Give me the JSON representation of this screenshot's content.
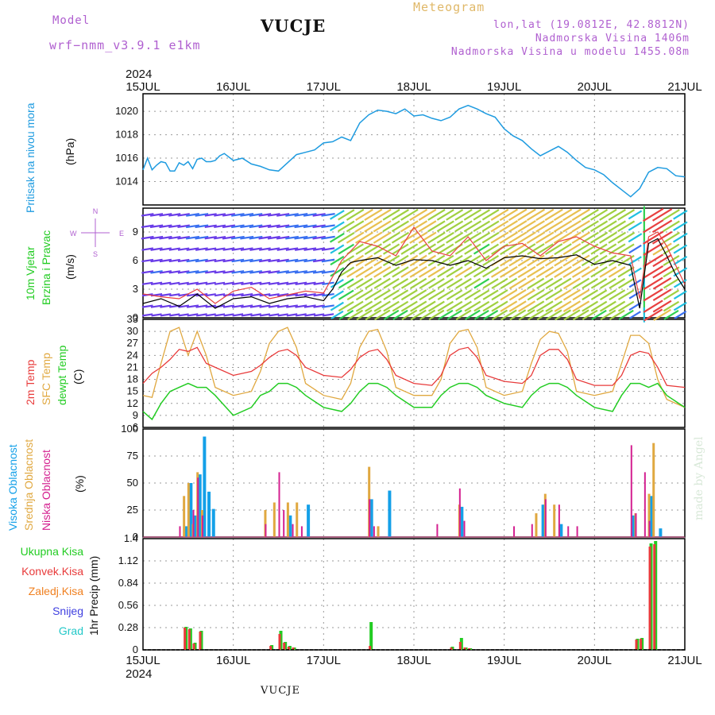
{
  "header": {
    "model_label": "Model",
    "model_name": "wrf−nmm_v3.9.1 e1km",
    "station": "VUCJE",
    "meteogram": "Meteogram",
    "lonlat": "lon,lat (19.0812E, 42.8812N)",
    "altitude": "Nadmorska Visina 1406m",
    "model_altitude": "Nadmorska Visina u modelu 1455.08m",
    "footer_station": "VUCJE",
    "year": "2024",
    "watermark": "made by Angel"
  },
  "colors": {
    "pressure": "#1E9BE0",
    "wind_title": "#22CC22",
    "temp2m": "#E83A3A",
    "sfc": "#E0A840",
    "dewpt": "#22CC22",
    "high": "#14A0E8",
    "mid": "#E0A840",
    "low": "#D42090",
    "total": "#22CC22",
    "conv": "#E83A3A",
    "strat": "#F08020",
    "snow": "#4040E0",
    "hail": "#22C8C8",
    "purple": "#B060D0"
  },
  "days": [
    "15JUL",
    "16JUL",
    "17JUL",
    "18JUL",
    "19JUL",
    "20JUL",
    "21JUL"
  ],
  "panels": {
    "pressure": {
      "label": "Pritisak na nivou mora",
      "unit": "(hPa)"
    },
    "wind": {
      "label1": "10m Vjetar",
      "label2": "Brzina i Pravac",
      "unit": "(m/s)",
      "compass_n": "N",
      "compass_s": "S",
      "compass_w": "W",
      "compass_e": "E"
    },
    "temp": {
      "label1": "2m Temp",
      "label2": "SFC Temp",
      "label3": "dewpt Temp",
      "unit": "(C)"
    },
    "cloud": {
      "label1": "Visoka Oblacnost",
      "label2": "Srednja Oblacnost",
      "label3": "Niska Oblacnost",
      "unit": "(%)"
    },
    "precip": {
      "legend": [
        "Ukupna Kisa",
        "Konvek.Kisa",
        "Zaledj.Kisa",
        "Snijeg",
        "Grad"
      ],
      "unit": "1hr Precip (mm)"
    }
  },
  "chart_data": [
    {
      "type": "line",
      "name": "pressure",
      "xlabel": "",
      "ylabel": "(hPa)",
      "ylim": [
        1012,
        1021.5
      ],
      "yticks": [
        1014,
        1016,
        1018,
        1020
      ],
      "series": [
        {
          "name": "Pritisak na nivou mora",
          "x": [
            0,
            0.05,
            0.1,
            0.15,
            0.2,
            0.25,
            0.3,
            0.35,
            0.4,
            0.45,
            0.5,
            0.55,
            0.6,
            0.65,
            0.7,
            0.75,
            0.8,
            0.85,
            0.9,
            1.0,
            1.1,
            1.2,
            1.3,
            1.4,
            1.5,
            1.6,
            1.7,
            1.8,
            1.9,
            2.0,
            2.1,
            2.2,
            2.3,
            2.4,
            2.5,
            2.6,
            2.7,
            2.8,
            2.9,
            3.0,
            3.1,
            3.2,
            3.3,
            3.4,
            3.5,
            3.6,
            3.7,
            3.8,
            3.9,
            4.0,
            4.1,
            4.2,
            4.3,
            4.4,
            4.5,
            4.6,
            4.7,
            4.8,
            4.9,
            5.0,
            5.1,
            5.2,
            5.3,
            5.4,
            5.5,
            5.6,
            5.7,
            5.8,
            5.9,
            6.0
          ],
          "y": [
            1015.0,
            1016.0,
            1015.0,
            1015.4,
            1015.7,
            1015.6,
            1014.9,
            1014.9,
            1015.6,
            1015.4,
            1015.7,
            1015.1,
            1015.9,
            1016.0,
            1015.7,
            1015.7,
            1015.8,
            1016.2,
            1016.4,
            1015.8,
            1016.0,
            1015.5,
            1015.3,
            1015.0,
            1014.9,
            1015.6,
            1016.3,
            1016.5,
            1016.7,
            1017.3,
            1017.4,
            1017.8,
            1017.5,
            1019.0,
            1019.7,
            1020.1,
            1020.0,
            1019.8,
            1020.2,
            1019.6,
            1019.7,
            1019.4,
            1019.2,
            1019.5,
            1020.2,
            1020.5,
            1020.2,
            1019.8,
            1019.5,
            1018.5,
            1017.9,
            1017.5,
            1016.8,
            1016.2,
            1016.6,
            1017.0,
            1016.5,
            1015.8,
            1015.2,
            1015.0,
            1014.6,
            1013.9,
            1013.3,
            1012.7,
            1013.4,
            1014.8,
            1015.2,
            1015.1,
            1014.5,
            1014.4
          ]
        }
      ]
    },
    {
      "type": "line",
      "name": "wind",
      "ylabel": "(m/s)",
      "ylim": [
        0,
        11.5
      ],
      "yticks": [
        0,
        3,
        6,
        9
      ],
      "series": [
        {
          "name": "10m Vjetar",
          "x": [
            0,
            0.2,
            0.4,
            0.6,
            0.8,
            1.0,
            1.2,
            1.4,
            1.6,
            1.8,
            2.0,
            2.1,
            2.2,
            2.3,
            2.4,
            2.6,
            2.8,
            3.0,
            3.2,
            3.4,
            3.6,
            3.8,
            4.0,
            4.2,
            4.4,
            4.6,
            4.8,
            5.0,
            5.2,
            5.4,
            5.5,
            5.6,
            5.7,
            5.8,
            5.9,
            6.0
          ],
          "y": [
            1.5,
            2.0,
            1.2,
            2.5,
            1.0,
            2.0,
            2.2,
            1.5,
            2.0,
            2.2,
            1.8,
            3.0,
            4.8,
            5.8,
            6.0,
            6.3,
            5.5,
            6.1,
            6.0,
            5.5,
            6.0,
            5.2,
            6.3,
            6.5,
            6.2,
            6.3,
            6.6,
            5.6,
            6.0,
            5.5,
            1.0,
            7.8,
            8.3,
            6.5,
            4.5,
            3.0
          ]
        },
        {
          "name": "gust",
          "x": [
            0,
            0.2,
            0.4,
            0.6,
            0.8,
            1.0,
            1.2,
            1.4,
            1.6,
            1.8,
            2.0,
            2.2,
            2.4,
            2.6,
            2.8,
            3.0,
            3.2,
            3.4,
            3.6,
            3.8,
            4.0,
            4.2,
            4.4,
            4.6,
            4.8,
            5.0,
            5.2,
            5.4,
            5.5,
            5.6,
            5.7,
            5.8,
            5.9,
            6.0
          ],
          "y": [
            2.5,
            2.2,
            2.0,
            3.0,
            1.5,
            2.8,
            3.2,
            2.0,
            2.4,
            2.8,
            2.6,
            6.0,
            8.0,
            7.5,
            6.5,
            9.5,
            7.0,
            6.5,
            8.5,
            6.0,
            7.5,
            7.8,
            6.5,
            8.0,
            8.5,
            7.5,
            6.8,
            6.5,
            2.0,
            8.5,
            9.0,
            7.5,
            5.5,
            3.5
          ]
        }
      ]
    },
    {
      "type": "line",
      "name": "temperature",
      "ylabel": "(C)",
      "ylim": [
        6,
        33
      ],
      "yticks": [
        6,
        9,
        12,
        15,
        18,
        21,
        24,
        27,
        30,
        33
      ],
      "series": [
        {
          "name": "2m Temp",
          "x": [
            0,
            0.1,
            0.2,
            0.3,
            0.4,
            0.5,
            0.6,
            0.7,
            0.8,
            1.0,
            1.2,
            1.3,
            1.4,
            1.5,
            1.6,
            1.7,
            1.8,
            2.0,
            2.2,
            2.3,
            2.4,
            2.5,
            2.6,
            2.7,
            2.8,
            3.0,
            3.2,
            3.3,
            3.4,
            3.5,
            3.6,
            3.7,
            3.8,
            4.0,
            4.2,
            4.3,
            4.4,
            4.5,
            4.6,
            4.7,
            4.8,
            5.0,
            5.2,
            5.3,
            5.4,
            5.5,
            5.6,
            5.7,
            5.8,
            6.0
          ],
          "y": [
            17,
            19.5,
            21,
            23,
            25.5,
            25,
            26,
            22,
            21,
            19,
            20,
            21.5,
            23.5,
            25,
            25.5,
            24,
            21,
            19,
            18.5,
            20.5,
            23.5,
            25,
            25.5,
            23,
            19,
            17,
            16.5,
            19,
            24,
            25.5,
            26,
            23.5,
            19,
            17.5,
            17,
            19,
            24,
            25.5,
            25.5,
            23,
            18,
            16.5,
            16.5,
            19,
            24,
            25,
            24.5,
            21,
            16.5,
            16
          ]
        },
        {
          "name": "SFC Temp",
          "x": [
            0,
            0.1,
            0.2,
            0.3,
            0.4,
            0.5,
            0.6,
            0.7,
            0.8,
            1.0,
            1.2,
            1.3,
            1.4,
            1.5,
            1.6,
            1.7,
            1.8,
            2.0,
            2.2,
            2.3,
            2.4,
            2.5,
            2.6,
            2.7,
            2.8,
            3.0,
            3.2,
            3.3,
            3.4,
            3.5,
            3.6,
            3.7,
            3.8,
            4.0,
            4.2,
            4.3,
            4.4,
            4.5,
            4.6,
            4.7,
            4.8,
            5.0,
            5.2,
            5.3,
            5.4,
            5.5,
            5.6,
            5.7,
            5.8,
            6.0
          ],
          "y": [
            14,
            13.5,
            22,
            30,
            31,
            24,
            30,
            24,
            16,
            14,
            15,
            20,
            27,
            30,
            31,
            26,
            17,
            14,
            13,
            17,
            26,
            30,
            30.5,
            25,
            16,
            14,
            14,
            18,
            27,
            30,
            30.5,
            26,
            16,
            14,
            15,
            22,
            28,
            30,
            29.5,
            25,
            15,
            14,
            15,
            22,
            29,
            29,
            27,
            18,
            13,
            11
          ]
        },
        {
          "name": "dewpt Temp",
          "x": [
            0,
            0.1,
            0.2,
            0.3,
            0.4,
            0.5,
            0.6,
            0.7,
            0.8,
            1.0,
            1.2,
            1.3,
            1.4,
            1.5,
            1.6,
            1.7,
            1.8,
            2.0,
            2.2,
            2.3,
            2.4,
            2.5,
            2.6,
            2.7,
            2.8,
            3.0,
            3.2,
            3.3,
            3.4,
            3.5,
            3.6,
            3.7,
            3.8,
            4.0,
            4.2,
            4.3,
            4.4,
            4.5,
            4.6,
            4.7,
            4.8,
            5.0,
            5.2,
            5.3,
            5.4,
            5.5,
            5.6,
            5.7,
            5.8,
            6.0
          ],
          "y": [
            10,
            8,
            12,
            15,
            16,
            17,
            16,
            16,
            14,
            9,
            11,
            14,
            15,
            17,
            17,
            16,
            14,
            11,
            10,
            12,
            15,
            17,
            17,
            16,
            14,
            11,
            11,
            14,
            16,
            17,
            17,
            16,
            14,
            12,
            11,
            14,
            16,
            17,
            17,
            16,
            14,
            11,
            10,
            14,
            17,
            17,
            16,
            17,
            14,
            11
          ]
        }
      ]
    },
    {
      "type": "bar",
      "name": "cloud",
      "ylabel": "(%)",
      "ylim": [
        0,
        100
      ],
      "yticks": [
        0,
        25,
        50,
        75,
        100
      ],
      "series": [
        {
          "name": "Visoka Oblacnost",
          "x": [
            0.45,
            0.5,
            0.55,
            0.6,
            0.65,
            0.7,
            0.75,
            1.6,
            1.8,
            2.5,
            2.7,
            3.5,
            4.4,
            4.6,
            5.4,
            5.6,
            5.7
          ],
          "y": [
            10,
            50,
            20,
            58,
            93,
            42,
            26,
            20,
            30,
            35,
            43,
            28,
            30,
            12,
            20,
            38,
            8
          ]
        },
        {
          "name": "Srednja Oblacnost",
          "x": [
            0.45,
            0.5,
            0.55,
            0.6,
            0.65,
            1.35,
            1.45,
            1.6,
            1.7,
            2.5,
            2.6,
            3.5,
            4.35,
            4.45,
            4.55,
            5.45,
            5.6,
            5.65
          ],
          "y": [
            38,
            50,
            12,
            60,
            25,
            25,
            32,
            32,
            32,
            65,
            10,
            30,
            22,
            40,
            30,
            22,
            40,
            87
          ]
        },
        {
          "name": "Niska Oblacnost",
          "x": [
            0.4,
            0.55,
            0.6,
            0.65,
            1.35,
            1.5,
            1.55,
            1.65,
            1.75,
            2.5,
            2.55,
            3.25,
            3.5,
            3.55,
            4.1,
            4.3,
            4.45,
            4.6,
            4.7,
            4.8,
            5.4,
            5.45,
            5.55,
            5.6
          ],
          "y": [
            10,
            25,
            55,
            20,
            12,
            60,
            25,
            12,
            10,
            35,
            10,
            12,
            45,
            15,
            10,
            12,
            35,
            30,
            10,
            10,
            85,
            22,
            60,
            15
          ]
        }
      ]
    },
    {
      "type": "bar",
      "name": "precipitation",
      "ylabel": "1hr Precip (mm)",
      "ylim": [
        0,
        1.4
      ],
      "yticks": [
        0,
        0.28,
        0.56,
        0.84,
        1.12,
        1.4
      ],
      "series": [
        {
          "name": "Ukupna Kisa",
          "x": [
            0.45,
            0.5,
            0.55,
            0.62,
            1.4,
            1.5,
            1.55,
            1.6,
            1.65,
            2.5,
            3.4,
            3.5,
            3.55,
            3.6,
            5.45,
            5.5,
            5.6,
            5.65
          ],
          "y": [
            0.29,
            0.27,
            0.09,
            0.24,
            0.06,
            0.24,
            0.1,
            0.05,
            0.03,
            0.35,
            0.04,
            0.15,
            0.03,
            0.02,
            0.14,
            0.15,
            1.34,
            1.37
          ]
        },
        {
          "name": "Konvek.Kisa",
          "x": [
            0.45,
            0.5,
            0.55,
            0.62,
            1.4,
            1.5,
            1.55,
            1.6,
            1.65,
            2.5,
            3.4,
            3.5,
            3.55,
            3.6,
            5.45,
            5.5,
            5.6,
            5.65
          ],
          "y": [
            0.28,
            0.26,
            0.08,
            0.23,
            0.05,
            0.2,
            0.09,
            0.04,
            0.03,
            0.05,
            0.03,
            0.1,
            0.03,
            0.02,
            0.13,
            0.14,
            1.3,
            1.33
          ]
        }
      ]
    }
  ]
}
